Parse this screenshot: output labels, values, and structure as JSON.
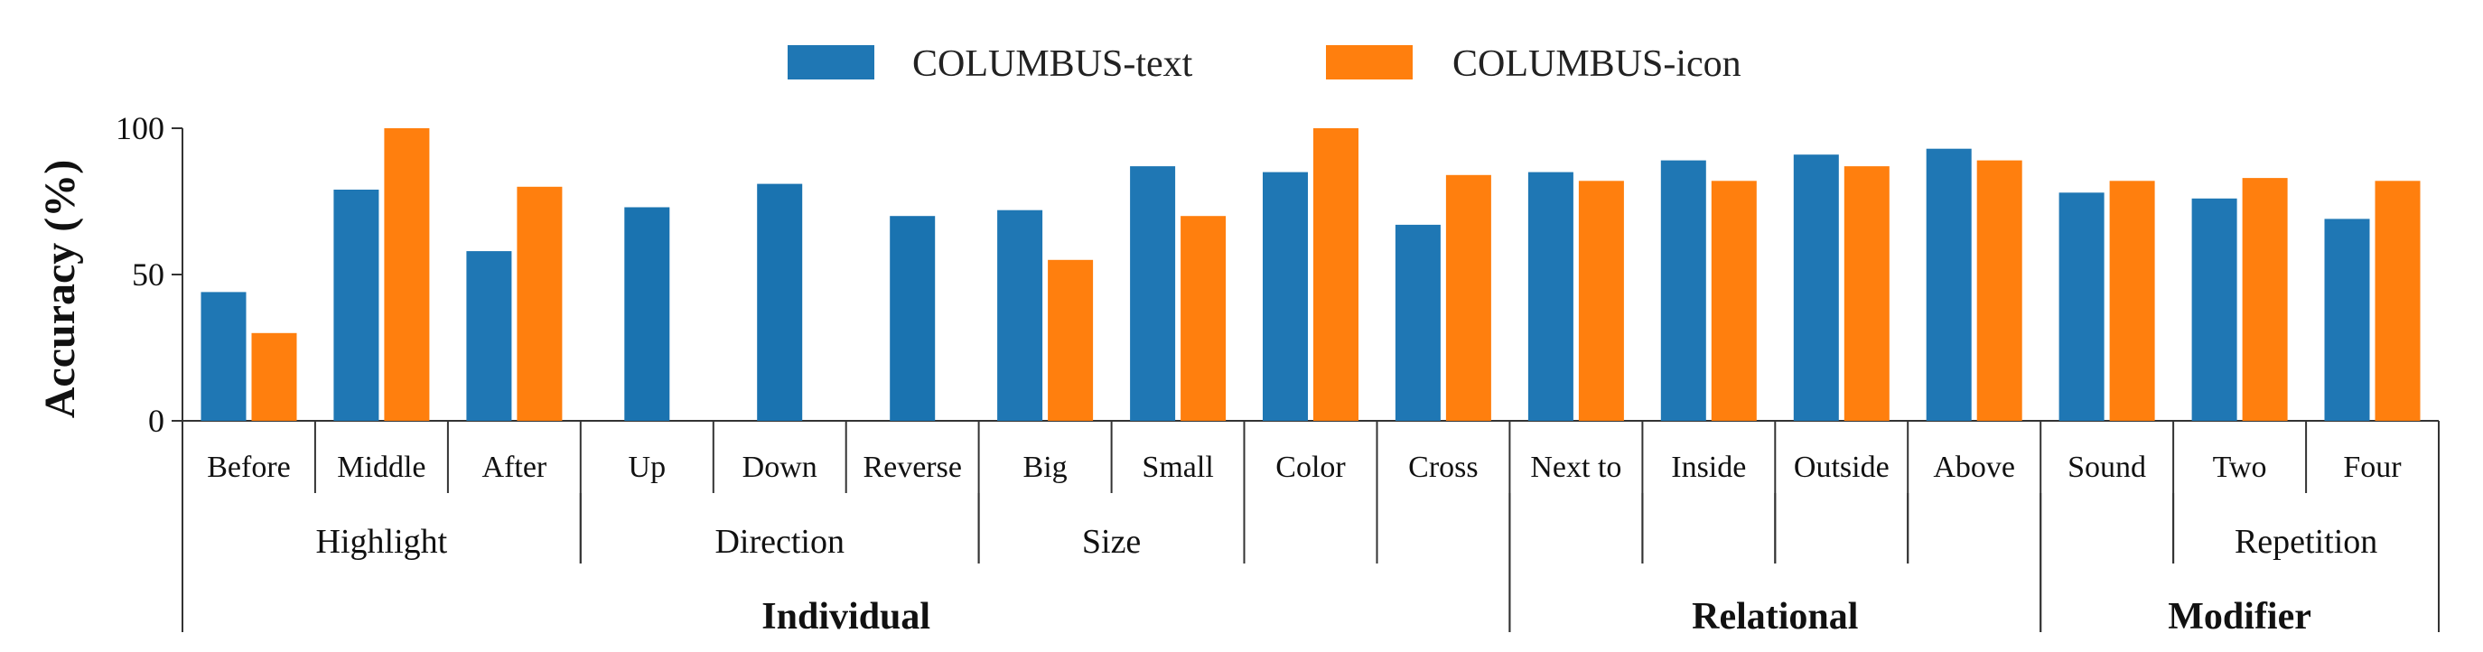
{
  "colors": {
    "text_series": "#1f77b4",
    "icon_series": "#ff7f0e"
  },
  "chart_data": {
    "type": "bar",
    "ylabel": "Accuracy (%)",
    "xlabel": "",
    "ylim": [
      0,
      100
    ],
    "yticks": [
      "0",
      "50",
      "100"
    ],
    "legend_position": "top-center",
    "categories": [
      "Before",
      "Middle",
      "After",
      "Up",
      "Down",
      "Reverse",
      "Big",
      "Small",
      "Color",
      "Cross",
      "Next to",
      "Inside",
      "Outside",
      "Above",
      "Sound",
      "Two",
      "Four"
    ],
    "series": [
      {
        "name": "COLUMBUS-text",
        "values": [
          44,
          79,
          58,
          73,
          81,
          70,
          72,
          87,
          85,
          67,
          85,
          89,
          91,
          93,
          78,
          76,
          69
        ]
      },
      {
        "name": "COLUMBUS-icon",
        "values": [
          30,
          100,
          80,
          null,
          null,
          null,
          55,
          70,
          100,
          84,
          82,
          82,
          87,
          89,
          82,
          83,
          82
        ]
      }
    ],
    "groups": [
      {
        "label": "Highlight",
        "start": 0,
        "end": 2
      },
      {
        "label": "Direction",
        "start": 3,
        "end": 5
      },
      {
        "label": "Size",
        "start": 6,
        "end": 7
      },
      {
        "label": "",
        "start": 8,
        "end": 8
      },
      {
        "label": "",
        "start": 9,
        "end": 9
      },
      {
        "label": "",
        "start": 10,
        "end": 10
      },
      {
        "label": "",
        "start": 11,
        "end": 11
      },
      {
        "label": "",
        "start": 12,
        "end": 12
      },
      {
        "label": "",
        "start": 13,
        "end": 13
      },
      {
        "label": "",
        "start": 14,
        "end": 14
      },
      {
        "label": "Repetition",
        "start": 15,
        "end": 16
      }
    ],
    "supergroups": [
      {
        "label": "Individual",
        "start": 0,
        "end": 9
      },
      {
        "label": "Relational",
        "start": 10,
        "end": 13
      },
      {
        "label": "Modifier",
        "start": 14,
        "end": 16
      }
    ]
  }
}
